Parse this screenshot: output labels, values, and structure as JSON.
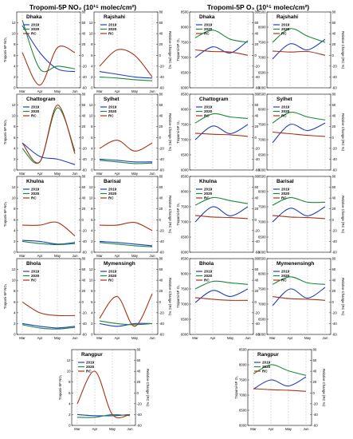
{
  "titles": {
    "no2": "Tropomi-5P NO₂ (10¹⁵ molec/cm²)",
    "o3": "Tropomi-5P O₃ (10¹⁵ molec/cm²)"
  },
  "months": [
    "Mar",
    "Apr",
    "May",
    "Jun"
  ],
  "legend": [
    "2019",
    "2020",
    "RC"
  ],
  "colors": {
    "2019": "#1f3fbf",
    "2020": "#1a8a3a",
    "RC": "#a83218",
    "grid": "#9a9a9a",
    "frame": "#000000"
  },
  "chart_data": {
    "type": "line",
    "x": [
      "Mar",
      "Apr",
      "May",
      "Jun"
    ],
    "no2": {
      "ylabel": "Tropomi-5P NO₂",
      "y2label": "Relative Change (RC %)",
      "ylim": [
        0,
        14
      ],
      "yticks": [
        0,
        2,
        4,
        6,
        8,
        10,
        12
      ],
      "y2lim": [
        -60,
        80
      ],
      "y2ticks": [
        -60,
        -40,
        -20,
        0,
        20,
        40,
        60,
        80
      ],
      "panels": [
        {
          "city": "Dhaka",
          "s2019": [
            11.5,
            6.5,
            3.5,
            3.0
          ],
          "s2020": [
            12.5,
            3.5,
            4.0,
            3.5
          ],
          "rc": [
            5,
            -55,
            14,
            5
          ]
        },
        {
          "city": "Rajshahi",
          "s2019": [
            3.0,
            2.5,
            2.0,
            1.8
          ],
          "s2020": [
            2.0,
            1.8,
            1.5,
            1.3
          ],
          "rc": [
            -20,
            10,
            0,
            -40
          ]
        },
        {
          "city": "Chattogram",
          "s2019": [
            5.0,
            2.5,
            2.0,
            1.0
          ],
          "s2020": [
            4.0,
            1.5,
            11.5,
            3.5
          ],
          "rc": [
            -10,
            -45,
            60,
            -30
          ]
        },
        {
          "city": "Sylhet",
          "s2019": [
            2.0,
            1.8,
            1.5,
            1.5
          ],
          "s2020": [
            1.8,
            1.5,
            1.2,
            1.3
          ],
          "rc": [
            -20,
            -5,
            -25,
            -10
          ]
        },
        {
          "city": "Khulna",
          "s2019": [
            2.2,
            2.0,
            1.5,
            1.8
          ],
          "s2020": [
            2.0,
            1.6,
            1.4,
            1.6
          ],
          "rc": [
            -10,
            -10,
            -5,
            -30
          ]
        },
        {
          "city": "Barisal",
          "s2019": [
            2.0,
            1.8,
            1.5,
            1.2
          ],
          "s2020": [
            1.8,
            1.5,
            1.2,
            1.0
          ],
          "rc": [
            -10,
            -10,
            -5,
            -20
          ]
        },
        {
          "city": "Bhola",
          "s2019": [
            2.0,
            1.5,
            1.2,
            1.5
          ],
          "s2020": [
            1.8,
            1.2,
            1.0,
            1.3
          ],
          "rc": [
            0,
            -20,
            -25,
            -25
          ]
        },
        {
          "city": "Mymensingh",
          "s2019": [
            2.0,
            1.5,
            2.0,
            2.0
          ],
          "s2020": [
            2.5,
            2.0,
            1.8,
            2.0
          ],
          "rc": [
            -30,
            10,
            -45,
            15
          ]
        },
        {
          "city": "Rangpur",
          "s2019": [
            2.0,
            1.8,
            1.8,
            2.0
          ],
          "s2020": [
            1.5,
            1.5,
            2.0,
            1.8
          ],
          "rc": [
            -20,
            40,
            -40,
            -40
          ]
        }
      ]
    },
    "o3": {
      "ylabel": "Tropomi-5P O₃",
      "y2label": "Relative Change (RC %)",
      "ylim": [
        6000,
        8500
      ],
      "yticks": [
        6000,
        6500,
        7000,
        7500,
        8000,
        8500
      ],
      "y2lim": [
        -60,
        80
      ],
      "y2ticks": [
        -60,
        -40,
        -20,
        0,
        20,
        40,
        60,
        80
      ],
      "panels": [
        {
          "city": "Dhaka",
          "s2019": [
            7000,
            7350,
            7150,
            7550
          ],
          "s2020": [
            7650,
            7900,
            7600,
            7500
          ],
          "rc": [
            10,
            7,
            6,
            0
          ]
        },
        {
          "city": "Rajshahi",
          "s2019": [
            6950,
            7450,
            7250,
            7600
          ],
          "s2020": [
            7500,
            7950,
            7700,
            7500
          ],
          "rc": [
            8,
            6,
            7,
            0
          ]
        },
        {
          "city": "Chattogram",
          "s2019": [
            7000,
            7450,
            7200,
            7500
          ],
          "s2020": [
            7550,
            7850,
            7750,
            7700
          ],
          "rc": [
            8,
            6,
            5,
            2
          ]
        },
        {
          "city": "Sylhet",
          "s2019": [
            6900,
            7500,
            7300,
            7550
          ],
          "s2020": [
            7550,
            7900,
            7750,
            7650
          ],
          "rc": [
            10,
            7,
            4,
            2
          ]
        },
        {
          "city": "Khulna",
          "s2019": [
            7000,
            7500,
            7200,
            7500
          ],
          "s2020": [
            7550,
            7800,
            7700,
            7600
          ],
          "rc": [
            8,
            5,
            4,
            2
          ]
        },
        {
          "city": "Barisal",
          "s2019": [
            7000,
            7450,
            7200,
            7500
          ],
          "s2020": [
            7550,
            7800,
            7650,
            7650
          ],
          "rc": [
            8,
            5,
            4,
            2
          ]
        },
        {
          "city": "Bhola",
          "s2019": [
            7050,
            7450,
            7250,
            7500
          ],
          "s2020": [
            7500,
            7750,
            7700,
            7650
          ],
          "rc": [
            8,
            5,
            3,
            3
          ]
        },
        {
          "city": "Mymenensingh",
          "s2019": [
            6950,
            7500,
            7200,
            7550
          ],
          "s2020": [
            7650,
            7900,
            7700,
            7650
          ],
          "rc": [
            10,
            6,
            5,
            3
          ]
        },
        {
          "city": "Rangpur",
          "s2019": [
            7200,
            7500,
            7300,
            7600
          ],
          "s2020": [
            7700,
            8000,
            7800,
            7650
          ],
          "rc": [
            8,
            6,
            5,
            3
          ]
        }
      ]
    }
  }
}
